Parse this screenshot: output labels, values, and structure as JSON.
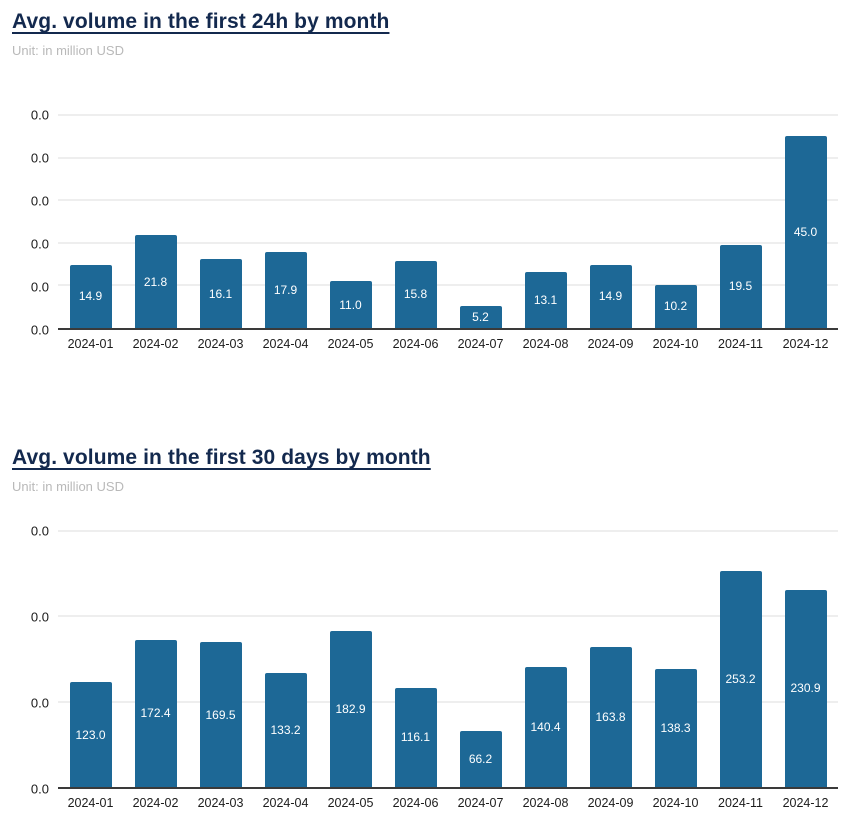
{
  "page": {
    "background_color": "#ffffff",
    "accent_navy": "#13294e",
    "subtitle_gray": "#b9b9b9",
    "gridline_color": "#dedede",
    "axis_line_color": "#3a3a3a"
  },
  "chart_data": [
    {
      "type": "bar",
      "title": "Avg. volume in the first 24h by month",
      "subtitle": "Unit: in million USD",
      "categories": [
        "2024-01",
        "2024-02",
        "2024-03",
        "2024-04",
        "2024-05",
        "2024-06",
        "2024-07",
        "2024-08",
        "2024-09",
        "2024-10",
        "2024-11",
        "2024-12"
      ],
      "values": [
        14.9,
        21.8,
        16.1,
        17.9,
        11.0,
        15.8,
        5.2,
        13.1,
        14.9,
        10.2,
        19.5,
        45.0
      ],
      "value_labels": [
        "14.9",
        "21.8",
        "16.1",
        "17.9",
        "11.0",
        "15.8",
        "5.2",
        "13.1",
        "14.9",
        "10.2",
        "19.5",
        "45.0"
      ],
      "xlabel": "",
      "ylabel": "",
      "ylim": [
        0,
        50
      ],
      "ytick_step": 10,
      "ytick_labels_displayed": [
        "0.0",
        "0.0",
        "0.0",
        "0.0",
        "0.0",
        "0.0"
      ],
      "grid": true,
      "legend": "none",
      "bar_color": "#1d6896",
      "value_label_color": "#ffffff"
    },
    {
      "type": "bar",
      "title": "Avg. volume in the first 30 days by month",
      "subtitle": "Unit: in million USD",
      "categories": [
        "2024-01",
        "2024-02",
        "2024-03",
        "2024-04",
        "2024-05",
        "2024-06",
        "2024-07",
        "2024-08",
        "2024-09",
        "2024-10",
        "2024-11",
        "2024-12"
      ],
      "values": [
        123.0,
        172.4,
        169.5,
        133.2,
        182.9,
        116.1,
        66.2,
        140.4,
        163.8,
        138.3,
        253.2,
        230.9
      ],
      "value_labels": [
        "123.0",
        "172.4",
        "169.5",
        "133.2",
        "182.9",
        "116.1",
        "66.2",
        "140.4",
        "163.8",
        "138.3",
        "253.2",
        "230.9"
      ],
      "xlabel": "",
      "ylabel": "",
      "ylim": [
        0,
        300
      ],
      "ytick_step": 100,
      "ytick_labels_displayed": [
        "0.0",
        "0.0",
        "0.0",
        "0.0"
      ],
      "grid": true,
      "legend": "none",
      "bar_color": "#1d6896",
      "value_label_color": "#ffffff"
    }
  ]
}
